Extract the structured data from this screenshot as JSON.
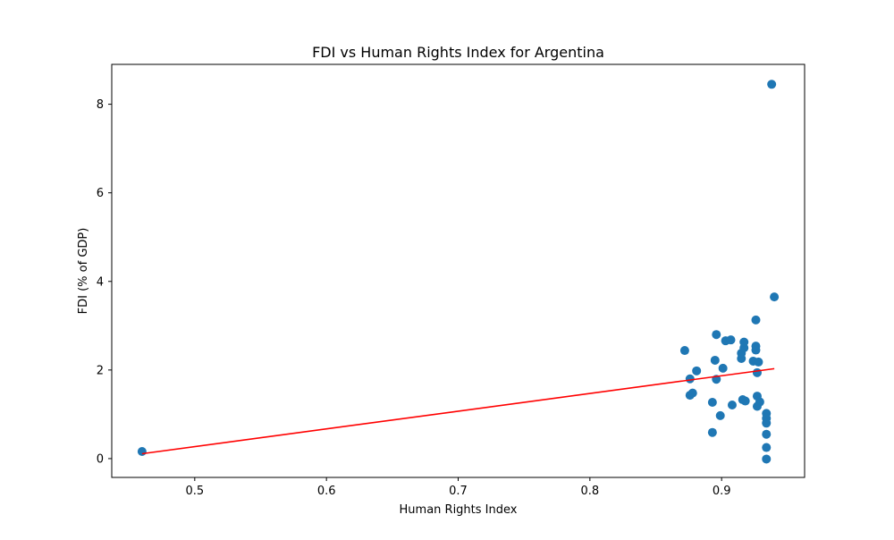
{
  "chart_data": {
    "type": "scatter",
    "title": "FDI vs Human Rights Index for Argentina",
    "xlabel": "Human Rights Index",
    "ylabel": "FDI (% of GDP)",
    "xlim": [
      0.437,
      0.963
    ],
    "ylim": [
      -0.425,
      8.9
    ],
    "xticks": [
      0.5,
      0.6,
      0.7,
      0.8,
      0.9
    ],
    "xtick_labels": [
      "0.5",
      "0.6",
      "0.7",
      "0.8",
      "0.9"
    ],
    "yticks": [
      0,
      2,
      4,
      6,
      8
    ],
    "ytick_labels": [
      "0",
      "2",
      "4",
      "6",
      "8"
    ],
    "grid": false,
    "legend": "none",
    "colors": {
      "points": "#1f77b4",
      "trend": "#ff0000"
    },
    "points": [
      {
        "x": 0.46,
        "y": 0.16
      },
      {
        "x": 0.872,
        "y": 2.44
      },
      {
        "x": 0.876,
        "y": 1.8
      },
      {
        "x": 0.876,
        "y": 1.43
      },
      {
        "x": 0.878,
        "y": 1.48
      },
      {
        "x": 0.881,
        "y": 1.98
      },
      {
        "x": 0.893,
        "y": 1.27
      },
      {
        "x": 0.893,
        "y": 0.59
      },
      {
        "x": 0.895,
        "y": 2.22
      },
      {
        "x": 0.896,
        "y": 2.8
      },
      {
        "x": 0.896,
        "y": 1.79
      },
      {
        "x": 0.899,
        "y": 0.97
      },
      {
        "x": 0.901,
        "y": 2.04
      },
      {
        "x": 0.903,
        "y": 2.66
      },
      {
        "x": 0.907,
        "y": 2.68
      },
      {
        "x": 0.908,
        "y": 1.21
      },
      {
        "x": 0.915,
        "y": 2.26
      },
      {
        "x": 0.915,
        "y": 2.38
      },
      {
        "x": 0.916,
        "y": 1.33
      },
      {
        "x": 0.917,
        "y": 2.5
      },
      {
        "x": 0.917,
        "y": 2.63
      },
      {
        "x": 0.918,
        "y": 1.3
      },
      {
        "x": 0.924,
        "y": 2.2
      },
      {
        "x": 0.926,
        "y": 3.13
      },
      {
        "x": 0.926,
        "y": 2.54
      },
      {
        "x": 0.926,
        "y": 2.45
      },
      {
        "x": 0.927,
        "y": 1.94
      },
      {
        "x": 0.927,
        "y": 1.41
      },
      {
        "x": 0.927,
        "y": 1.18
      },
      {
        "x": 0.928,
        "y": 2.18
      },
      {
        "x": 0.929,
        "y": 1.28
      },
      {
        "x": 0.934,
        "y": 1.02
      },
      {
        "x": 0.934,
        "y": 0.91
      },
      {
        "x": 0.934,
        "y": 0.8
      },
      {
        "x": 0.934,
        "y": 0.55
      },
      {
        "x": 0.934,
        "y": 0.25
      },
      {
        "x": 0.934,
        "y": -0.01
      },
      {
        "x": 0.938,
        "y": 8.45
      },
      {
        "x": 0.94,
        "y": 3.65
      }
    ],
    "trend_line": {
      "x": [
        0.46,
        0.94
      ],
      "y": [
        0.11,
        2.03
      ]
    }
  }
}
